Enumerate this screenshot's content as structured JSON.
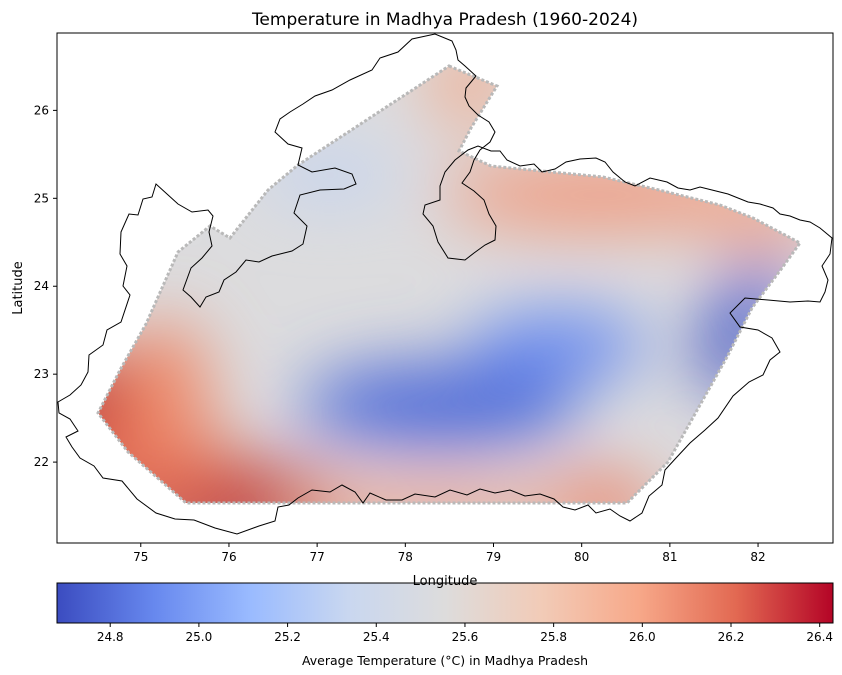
{
  "title": "Temperature in Madhya Pradesh (1960-2024)",
  "map": {
    "xlabel": "Longitude",
    "ylabel": "Latitude",
    "xlim": [
      74.05,
      82.85
    ],
    "ylim": [
      21.08,
      26.88
    ],
    "x_ticks": [
      "75",
      "76",
      "77",
      "78",
      "79",
      "80",
      "81",
      "82"
    ],
    "y_ticks": [
      "22",
      "23",
      "24",
      "25",
      "26"
    ],
    "colormap": "coolwarm"
  },
  "colorbar": {
    "label": "Average Temperature (°C) in Madhya Pradesh",
    "range": [
      24.68,
      26.43
    ],
    "ticks": [
      "24.8",
      "25.0",
      "25.2",
      "25.4",
      "25.6",
      "25.8",
      "26.0",
      "26.2",
      "26.4"
    ],
    "stops": [
      "#3b4cc0",
      "#6788ee",
      "#9abbff",
      "#c9d7f0",
      "#dddcdc",
      "#f2cbb7",
      "#f7a889",
      "#e26952",
      "#b40426"
    ]
  },
  "chart_data": {
    "type": "heatmap",
    "title": "Temperature in Madhya Pradesh (1960-2024)",
    "xlabel": "Longitude",
    "ylabel": "Latitude",
    "xlim": [
      74.05,
      82.85
    ],
    "ylim": [
      21.08,
      26.88
    ],
    "value_label": "Average Temperature (°C) in Madhya Pradesh",
    "value_range": [
      24.68,
      26.43
    ],
    "approx_field": [
      {
        "lon": 76.2,
        "lat": 21.55,
        "temp": 26.43
      },
      {
        "lon": 74.6,
        "lat": 22.5,
        "temp": 26.25
      },
      {
        "lon": 75.3,
        "lat": 22.1,
        "temp": 26.05
      },
      {
        "lon": 76.0,
        "lat": 22.9,
        "temp": 25.75
      },
      {
        "lon": 80.0,
        "lat": 25.0,
        "temp": 25.95
      },
      {
        "lon": 78.4,
        "lat": 26.4,
        "temp": 25.85
      },
      {
        "lon": 80.4,
        "lat": 21.6,
        "temp": 25.85
      },
      {
        "lon": 82.3,
        "lat": 24.5,
        "temp": 25.75
      },
      {
        "lon": 78.2,
        "lat": 22.6,
        "temp": 24.85
      },
      {
        "lon": 79.6,
        "lat": 23.3,
        "temp": 24.95
      },
      {
        "lon": 81.4,
        "lat": 23.1,
        "temp": 24.7
      },
      {
        "lon": 77.5,
        "lat": 24.5,
        "temp": 25.45
      },
      {
        "lon": 78.5,
        "lat": 25.4,
        "temp": 25.35
      }
    ]
  }
}
